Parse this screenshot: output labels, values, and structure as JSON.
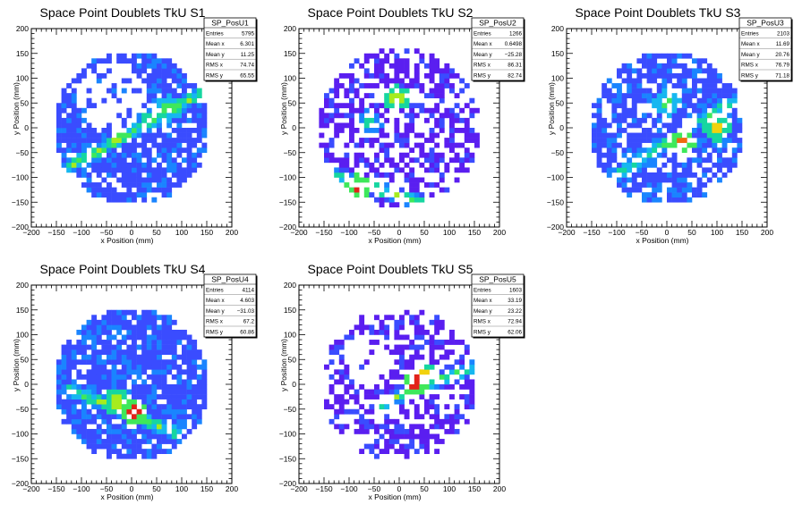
{
  "colors": {
    "background": "#ffffff",
    "frame": "#000000",
    "palette": [
      "#5a1ef0",
      "#3a4cff",
      "#1a84ff",
      "#16b7f0",
      "#16d6a0",
      "#3ee85a",
      "#a6ec1e",
      "#f2d20e",
      "#f06a0e",
      "#e2231a"
    ]
  },
  "chart_data": [
    {
      "type": "heatmap",
      "title": "Space Point Doublets TkU S1",
      "xlabel": "x Position (mm)",
      "ylabel": "y Position (mm)",
      "xlim": [
        -200,
        200
      ],
      "ylim": [
        -200,
        200
      ],
      "x_ticks": [
        "−200",
        "−150",
        "−100",
        "−50",
        "0",
        "50",
        "100",
        "150",
        "200"
      ],
      "y_ticks": [
        "−200",
        "−150",
        "−100",
        "−50",
        "0",
        "50",
        "100",
        "150",
        "200"
      ],
      "stats": {
        "name": "SP_PosU1",
        "rows": [
          {
            "label": "Entries",
            "value": "5795"
          },
          {
            "label": "Mean x",
            "value": "6.301"
          },
          {
            "label": "Mean y",
            "value": "11.25"
          },
          {
            "label": "RMS x",
            "value": "74.74"
          },
          {
            "label": "RMS y",
            "value": "65.55"
          }
        ]
      },
      "distribution": {
        "disk_radius": 155,
        "density": 0.8,
        "base_level": 1,
        "band": {
          "x1": -120,
          "y1": -75,
          "x2": 150,
          "y2": 75,
          "width": 22,
          "peak": 6
        },
        "hotspots": [
          {
            "x": 75,
            "y": 40,
            "level": 5
          },
          {
            "x": 30,
            "y": 15,
            "level": 4
          }
        ],
        "empty_region": {
          "x": -40,
          "y": 60,
          "r": 70
        },
        "seed": 11
      }
    },
    {
      "type": "heatmap",
      "title": "Space Point Doublets TkU S2",
      "xlabel": "x Position (mm)",
      "ylabel": "y Position (mm)",
      "xlim": [
        -200,
        200
      ],
      "ylim": [
        -200,
        200
      ],
      "x_ticks": [
        "−200",
        "−150",
        "−100",
        "−50",
        "0",
        "50",
        "100",
        "150",
        "200"
      ],
      "y_ticks": [
        "−200",
        "−150",
        "−100",
        "−50",
        "0",
        "50",
        "100",
        "150",
        "200"
      ],
      "stats": {
        "name": "SP_PosU2",
        "rows": [
          {
            "label": "Entries",
            "value": "1266"
          },
          {
            "label": "Mean x",
            "value": "0.6498"
          },
          {
            "label": "Mean y",
            "value": "−25.28"
          },
          {
            "label": "RMS x",
            "value": "86.31"
          },
          {
            "label": "RMS y",
            "value": "82.74"
          }
        ]
      },
      "distribution": {
        "disk_radius": 160,
        "density": 0.55,
        "base_level": 0,
        "band": {
          "x1": -150,
          "y1": -90,
          "x2": 40,
          "y2": -150,
          "width": 18,
          "peak": 7
        },
        "hotspots": [
          {
            "x": -80,
            "y": -120,
            "level": 9
          },
          {
            "x": -5,
            "y": 60,
            "level": 6
          },
          {
            "x": -60,
            "y": 10,
            "level": 4
          }
        ],
        "empty_region": {
          "x": 0,
          "y": 0,
          "r": 0
        },
        "seed": 23
      }
    },
    {
      "type": "heatmap",
      "title": "Space Point Doublets TkU S3",
      "xlabel": "x Position (mm)",
      "ylabel": "y Position (mm)",
      "xlim": [
        -200,
        200
      ],
      "ylim": [
        -200,
        200
      ],
      "x_ticks": [
        "−200",
        "−150",
        "−100",
        "−50",
        "0",
        "50",
        "100",
        "150",
        "200"
      ],
      "y_ticks": [
        "−200",
        "−150",
        "−100",
        "−50",
        "0",
        "50",
        "100",
        "150",
        "200"
      ],
      "stats": {
        "name": "SP_PosU3",
        "rows": [
          {
            "label": "Entries",
            "value": "2103"
          },
          {
            "label": "Mean x",
            "value": "11.69"
          },
          {
            "label": "Mean y",
            "value": "20.76"
          },
          {
            "label": "RMS x",
            "value": "76.79"
          },
          {
            "label": "RMS y",
            "value": "71.18"
          }
        ]
      },
      "distribution": {
        "disk_radius": 155,
        "density": 0.7,
        "base_level": 1,
        "band": {
          "x1": -110,
          "y1": -100,
          "x2": 140,
          "y2": 60,
          "width": 20,
          "peak": 5
        },
        "hotspots": [
          {
            "x": 30,
            "y": -30,
            "level": 8
          },
          {
            "x": 100,
            "y": 0,
            "level": 7
          },
          {
            "x": 0,
            "y": 50,
            "level": 5
          }
        ],
        "empty_region": {
          "x": 0,
          "y": 0,
          "r": 0
        },
        "seed": 37
      }
    },
    {
      "type": "heatmap",
      "title": "Space Point Doublets TkU S4",
      "xlabel": "x Position (mm)",
      "ylabel": "y Position (mm)",
      "xlim": [
        -200,
        200
      ],
      "ylim": [
        -200,
        200
      ],
      "x_ticks": [
        "−200",
        "−150",
        "−100",
        "−50",
        "0",
        "50",
        "100",
        "150",
        "200"
      ],
      "y_ticks": [
        "−200",
        "−150",
        "−100",
        "−50",
        "0",
        "50",
        "100",
        "150",
        "200"
      ],
      "stats": {
        "name": "SP_PosU4",
        "rows": [
          {
            "label": "Entries",
            "value": "4114"
          },
          {
            "label": "Mean x",
            "value": "4.603"
          },
          {
            "label": "Mean y",
            "value": "−31.03"
          },
          {
            "label": "RMS x",
            "value": "67.2"
          },
          {
            "label": "RMS y",
            "value": "60.86"
          }
        ]
      },
      "distribution": {
        "disk_radius": 155,
        "density": 0.85,
        "base_level": 1,
        "band": {
          "x1": -120,
          "y1": -10,
          "x2": 90,
          "y2": -100,
          "width": 22,
          "peak": 6
        },
        "hotspots": [
          {
            "x": 5,
            "y": -55,
            "level": 9
          },
          {
            "x": -30,
            "y": -35,
            "level": 6
          }
        ],
        "empty_region": {
          "x": 0,
          "y": 0,
          "r": 0
        },
        "seed": 53
      }
    },
    {
      "type": "heatmap",
      "title": "Space Point Doublets TkU S5",
      "xlabel": "x Position (mm)",
      "ylabel": "y Position (mm)",
      "xlim": [
        -200,
        200
      ],
      "ylim": [
        -200,
        200
      ],
      "x_ticks": [
        "−200",
        "−150",
        "−100",
        "−50",
        "0",
        "50",
        "100",
        "150",
        "200"
      ],
      "y_ticks": [
        "−200",
        "−150",
        "−100",
        "−50",
        "0",
        "50",
        "100",
        "150",
        "200"
      ],
      "stats": {
        "name": "SP_PosU5",
        "rows": [
          {
            "label": "Entries",
            "value": "1603"
          },
          {
            "label": "Mean x",
            "value": "33.19"
          },
          {
            "label": "Mean y",
            "value": "23.22"
          },
          {
            "label": "RMS x",
            "value": "72.94"
          },
          {
            "label": "RMS y",
            "value": "62.06"
          }
        ]
      },
      "distribution": {
        "disk_radius": 155,
        "density": 0.55,
        "base_level": 0,
        "band": {
          "x1": -40,
          "y1": -40,
          "x2": 160,
          "y2": 40,
          "width": 18,
          "peak": 6
        },
        "hotspots": [
          {
            "x": 30,
            "y": 5,
            "level": 9
          },
          {
            "x": 50,
            "y": 20,
            "level": 7
          }
        ],
        "empty_region": {
          "x": -60,
          "y": 50,
          "r": 55
        },
        "seed": 71
      }
    }
  ]
}
